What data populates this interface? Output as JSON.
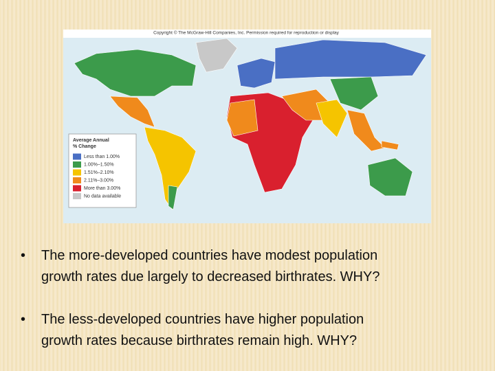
{
  "map": {
    "copyright": "Copyright © The McGraw-Hill Companies, Inc. Permission required for reproduction or display",
    "legend": {
      "title_lines": [
        "Average Annual",
        "% Change"
      ],
      "items": [
        {
          "label": "Less than 1.00%",
          "color": "#4a6fc4"
        },
        {
          "label": "1.00%–1.50%",
          "color": "#3c9b4b"
        },
        {
          "label": "1.51%–2.10%",
          "color": "#f5c400"
        },
        {
          "label": "2.11%–3.00%",
          "color": "#f08a1c"
        },
        {
          "label": "More than 3.00%",
          "color": "#d9202e"
        },
        {
          "label": "No data available",
          "color": "#c8c8c8"
        }
      ]
    }
  },
  "bullets": [
    [
      "The more-developed countries have modest population",
      "growth rates due largely to decreased birthrates. WHY?"
    ],
    [
      "The less-developed countries have higher population",
      "growth rates because birthrates remain high. WHY?"
    ]
  ]
}
